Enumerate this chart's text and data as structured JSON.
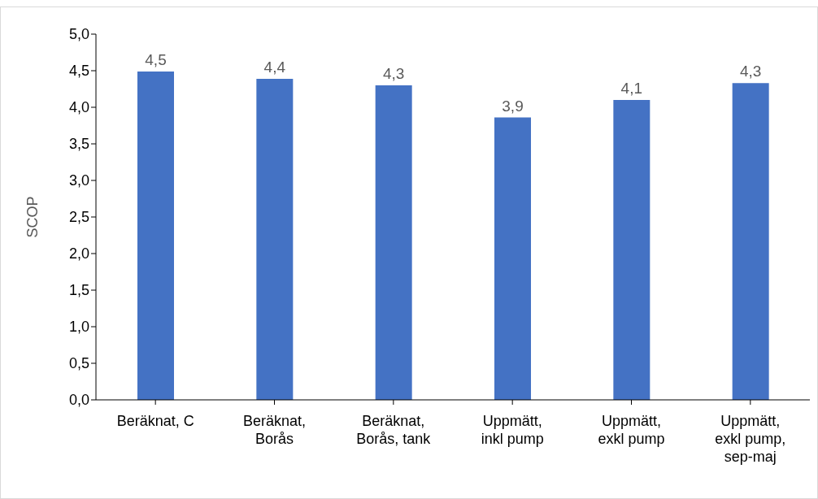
{
  "chart_data": {
    "type": "bar",
    "ylabel": "SCOP",
    "categories": [
      "Beräknat, C",
      "Beräknat, Borås",
      "Beräknat, Borås, tank",
      "Uppmätt, inkl pump",
      "Uppmätt, exkl pump",
      "Uppmätt, exkl pump, sep-maj"
    ],
    "values": [
      4.49,
      4.39,
      4.3,
      3.86,
      4.1,
      4.33
    ],
    "value_labels": [
      "4,5",
      "4,4",
      "4,3",
      "3,9",
      "4,1",
      "4,3"
    ],
    "color": "#4472c4",
    "ylim": [
      0,
      5
    ],
    "yticks": [
      {
        "value": 0,
        "label": "0,0"
      },
      {
        "value": 0.5,
        "label": "0,5"
      },
      {
        "value": 1,
        "label": "1,0"
      },
      {
        "value": 1.5,
        "label": "1,5"
      },
      {
        "value": 2,
        "label": "2,0"
      },
      {
        "value": 2.5,
        "label": "2,5"
      },
      {
        "value": 3,
        "label": "3,0"
      },
      {
        "value": 3.5,
        "label": "3,5"
      },
      {
        "value": 4,
        "label": "4,0"
      },
      {
        "value": 4.5,
        "label": "4,5"
      },
      {
        "value": 5,
        "label": "5,0"
      }
    ],
    "grid": false,
    "legend": false
  }
}
